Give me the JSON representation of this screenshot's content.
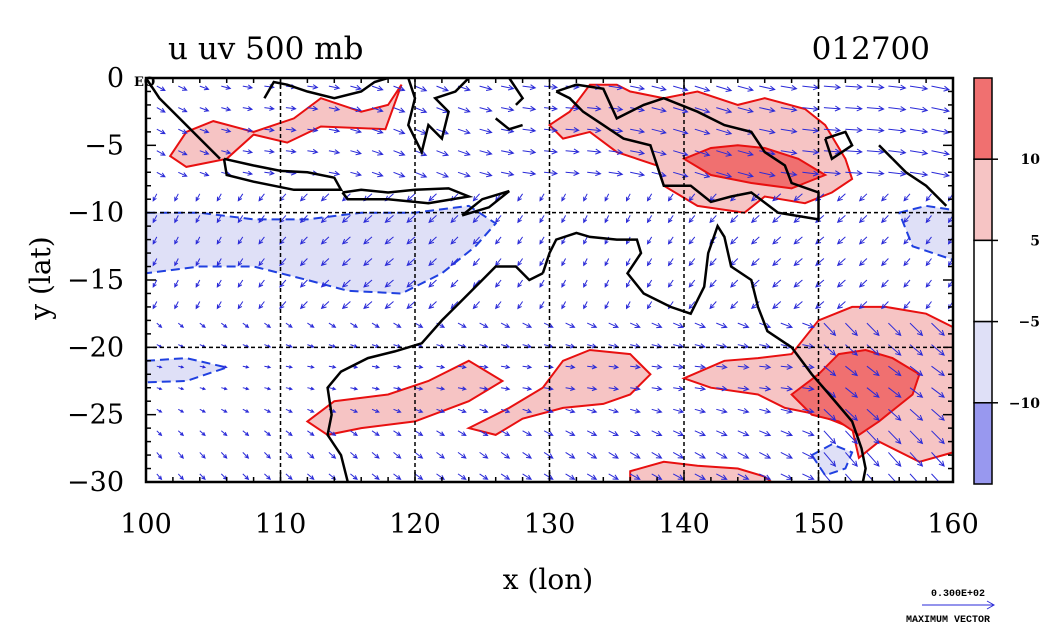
{
  "chart_data": {
    "type": "heatmap",
    "subtype": "contour-vector-map",
    "title": "u uv 500 mb",
    "date_label": "012700",
    "xlabel": "x (lon)",
    "ylabel": "y (lat)",
    "xlim": [
      100,
      160
    ],
    "ylim": [
      -30,
      0
    ],
    "x_ticks": [
      100,
      110,
      120,
      130,
      140,
      150,
      160
    ],
    "x_tick_labels": [
      "100",
      "110",
      "120",
      "130",
      "140",
      "150",
      "160"
    ],
    "y_ticks": [
      0,
      -5,
      -10,
      -15,
      -20,
      -25,
      -30
    ],
    "y_tick_labels": [
      "0",
      "−5",
      "−10",
      "−15",
      "−20",
      "−25",
      "−30"
    ],
    "eq_label": "EQ",
    "gridlines": {
      "lon": [
        110,
        120,
        130,
        140,
        150
      ],
      "lat": [
        -10,
        -20
      ]
    },
    "colorbar": {
      "bins": [
        {
          "from": 10,
          "to": 15,
          "color": "#f07070"
        },
        {
          "from": 5,
          "to": 10,
          "color": "#f6c4c4"
        },
        {
          "from": -5,
          "to": 5,
          "color": "#ffffff"
        },
        {
          "from": -10,
          "to": -5,
          "color": "#dfe0f7"
        },
        {
          "from": -15,
          "to": -10,
          "color": "#9898ef"
        }
      ],
      "tick_values": [
        10,
        5,
        -5,
        -10
      ],
      "tick_labels": [
        "10",
        "5",
        "−5",
        "−10"
      ]
    },
    "max_vector": {
      "value_label": "0.300E+02",
      "caption": "MAXIMUM VECTOR",
      "magnitude": 30
    },
    "regions": [
      {
        "level": "pos",
        "polygon": [
          [
            101.8,
            -5.8
          ],
          [
            103.0,
            -4.0
          ],
          [
            105.0,
            -3.2
          ],
          [
            108.0,
            -4.0
          ],
          [
            111.0,
            -3.0
          ],
          [
            113.0,
            -1.5
          ],
          [
            116.0,
            -2.5
          ],
          [
            118.0,
            -2.0
          ],
          [
            119.0,
            -0.5
          ],
          [
            117.8,
            -3.8
          ],
          [
            113.0,
            -3.6
          ],
          [
            110.5,
            -4.8
          ],
          [
            108.0,
            -4.2
          ],
          [
            106.0,
            -6.0
          ],
          [
            103.0,
            -6.6
          ]
        ]
      },
      {
        "level": "pos",
        "polygon": [
          [
            130.0,
            -3.5
          ],
          [
            131.5,
            -2.5
          ],
          [
            133.0,
            -0.5
          ],
          [
            135.0,
            -0.5
          ],
          [
            136.0,
            -1.0
          ],
          [
            138.5,
            -1.5
          ],
          [
            141.0,
            -1.0
          ],
          [
            144.0,
            -2.0
          ],
          [
            146.0,
            -1.5
          ],
          [
            149.0,
            -2.3
          ],
          [
            150.5,
            -3.5
          ],
          [
            152.0,
            -6.0
          ],
          [
            152.5,
            -7.5
          ],
          [
            151.0,
            -8.5
          ],
          [
            149.0,
            -9.3
          ],
          [
            146.0,
            -8.8
          ],
          [
            144.5,
            -10.0
          ],
          [
            141.0,
            -9.5
          ],
          [
            138.5,
            -8.0
          ],
          [
            138.0,
            -6.5
          ],
          [
            135.0,
            -5.5
          ],
          [
            133.0,
            -4.0
          ],
          [
            131.0,
            -4.5
          ]
        ]
      },
      {
        "level": "pos2",
        "polygon": [
          [
            140.0,
            -6.0
          ],
          [
            142.0,
            -5.2
          ],
          [
            144.0,
            -5.0
          ],
          [
            146.0,
            -5.2
          ],
          [
            148.5,
            -6.0
          ],
          [
            150.5,
            -7.2
          ],
          [
            148.0,
            -8.2
          ],
          [
            145.0,
            -7.8
          ],
          [
            142.0,
            -7.2
          ]
        ]
      },
      {
        "level": "pos",
        "polygon": [
          [
            112.0,
            -25.5
          ],
          [
            114.0,
            -24.0
          ],
          [
            118.0,
            -23.5
          ],
          [
            121.0,
            -22.5
          ],
          [
            124.0,
            -21.0
          ],
          [
            126.5,
            -22.5
          ],
          [
            124.0,
            -24.0
          ],
          [
            120.0,
            -25.5
          ],
          [
            116.0,
            -26.0
          ],
          [
            113.5,
            -26.5
          ]
        ]
      },
      {
        "level": "pos",
        "polygon": [
          [
            124.0,
            -26.0
          ],
          [
            127.0,
            -24.5
          ],
          [
            129.5,
            -23.0
          ],
          [
            131.0,
            -21.0
          ],
          [
            133.0,
            -20.2
          ],
          [
            136.0,
            -20.5
          ],
          [
            137.5,
            -22.0
          ],
          [
            136.0,
            -23.5
          ],
          [
            134.0,
            -24.2
          ],
          [
            131.0,
            -24.5
          ],
          [
            128.0,
            -25.3
          ],
          [
            126.0,
            -26.5
          ]
        ]
      },
      {
        "level": "pos",
        "polygon": [
          [
            140.0,
            -22.3
          ],
          [
            143.0,
            -21.0
          ],
          [
            145.5,
            -20.8
          ],
          [
            148.0,
            -20.5
          ],
          [
            150.0,
            -18.0
          ],
          [
            152.5,
            -17.0
          ],
          [
            155.0,
            -17.0
          ],
          [
            158.0,
            -17.5
          ],
          [
            160.0,
            -18.5
          ],
          [
            160.0,
            -27.8
          ],
          [
            157.5,
            -28.5
          ],
          [
            154.5,
            -27.0
          ],
          [
            153.0,
            -28.2
          ],
          [
            152.5,
            -26.0
          ],
          [
            150.0,
            -25.0
          ],
          [
            147.5,
            -24.5
          ],
          [
            145.5,
            -23.5
          ],
          [
            142.0,
            -23.0
          ]
        ]
      },
      {
        "level": "pos2",
        "polygon": [
          [
            148.0,
            -23.5
          ],
          [
            150.0,
            -22.0
          ],
          [
            151.5,
            -20.5
          ],
          [
            153.5,
            -20.2
          ],
          [
            155.5,
            -20.8
          ],
          [
            157.5,
            -22.0
          ],
          [
            157.0,
            -23.5
          ],
          [
            154.5,
            -25.5
          ],
          [
            153.0,
            -26.5
          ],
          [
            151.5,
            -25.5
          ],
          [
            149.5,
            -25.0
          ]
        ]
      },
      {
        "level": "pos",
        "polygon": [
          [
            136.0,
            -29.2
          ],
          [
            138.5,
            -28.5
          ],
          [
            141.0,
            -28.8
          ],
          [
            144.0,
            -29.0
          ],
          [
            146.0,
            -29.6
          ],
          [
            146.5,
            -30.0
          ],
          [
            136.0,
            -30.0
          ]
        ]
      },
      {
        "level": "neg",
        "polygon": [
          [
            100.0,
            -10.0
          ],
          [
            104.0,
            -10.0
          ],
          [
            108.0,
            -10.5
          ],
          [
            112.0,
            -10.5
          ],
          [
            116.0,
            -10.0
          ],
          [
            120.0,
            -10.0
          ],
          [
            124.0,
            -9.5
          ],
          [
            126.0,
            -10.8
          ],
          [
            124.5,
            -12.5
          ],
          [
            122.0,
            -14.5
          ],
          [
            119.0,
            -16.0
          ],
          [
            115.0,
            -15.8
          ],
          [
            112.0,
            -15.0
          ],
          [
            108.0,
            -14.0
          ],
          [
            104.0,
            -14.0
          ],
          [
            100.0,
            -14.5
          ]
        ]
      },
      {
        "level": "neg",
        "polygon": [
          [
            100.0,
            -21.0
          ],
          [
            103.0,
            -20.8
          ],
          [
            106.0,
            -21.5
          ],
          [
            103.0,
            -22.5
          ],
          [
            100.0,
            -22.6
          ]
        ]
      },
      {
        "level": "neg",
        "polygon": [
          [
            156.0,
            -10.0
          ],
          [
            158.0,
            -9.5
          ],
          [
            160.0,
            -9.8
          ],
          [
            160.0,
            -13.5
          ],
          [
            157.0,
            -12.5
          ]
        ]
      },
      {
        "level": "neg",
        "polygon": [
          [
            149.5,
            -28.0
          ],
          [
            151.0,
            -27.2
          ],
          [
            152.5,
            -27.8
          ],
          [
            152.0,
            -29.0
          ],
          [
            150.5,
            -29.5
          ]
        ]
      }
    ],
    "coastlines": [
      [
        [
          100.0,
          0.0
        ],
        [
          101.0,
          -1.5
        ],
        [
          102.5,
          -3.0
        ],
        [
          104.0,
          -4.5
        ],
        [
          105.5,
          -6.0
        ]
      ],
      [
        [
          105.8,
          -6.0
        ],
        [
          108.0,
          -6.5
        ],
        [
          110.0,
          -6.9
        ],
        [
          112.0,
          -7.0
        ],
        [
          114.0,
          -7.4
        ],
        [
          114.5,
          -8.3
        ],
        [
          111.0,
          -8.3
        ],
        [
          108.0,
          -7.7
        ],
        [
          106.0,
          -7.2
        ],
        [
          105.8,
          -6.0
        ]
      ],
      [
        [
          114.6,
          -8.5
        ],
        [
          116.0,
          -8.3
        ],
        [
          118.0,
          -8.5
        ],
        [
          120.0,
          -8.3
        ],
        [
          122.5,
          -8.2
        ],
        [
          124.0,
          -8.8
        ],
        [
          121.0,
          -9.3
        ],
        [
          118.0,
          -9.0
        ],
        [
          115.0,
          -9.0
        ],
        [
          114.6,
          -8.5
        ]
      ],
      [
        [
          123.5,
          -10.2
        ],
        [
          125.0,
          -9.0
        ],
        [
          127.0,
          -8.4
        ],
        [
          125.5,
          -9.6
        ],
        [
          123.5,
          -10.2
        ]
      ],
      [
        [
          108.8,
          -1.5
        ],
        [
          109.5,
          -0.3
        ],
        [
          110.5,
          -0.5
        ],
        [
          112.0,
          -1.0
        ],
        [
          114.0,
          -1.5
        ],
        [
          116.0,
          -1.0
        ],
        [
          117.0,
          -0.3
        ],
        [
          118.0,
          0.0
        ]
      ],
      [
        [
          119.5,
          0.0
        ],
        [
          120.0,
          -1.5
        ],
        [
          119.5,
          -3.5
        ],
        [
          120.5,
          -5.5
        ],
        [
          121.0,
          -3.5
        ],
        [
          122.0,
          -4.5
        ],
        [
          122.5,
          -2.5
        ],
        [
          121.5,
          -1.5
        ],
        [
          123.0,
          -1.0
        ],
        [
          124.0,
          0.0
        ]
      ],
      [
        [
          127.0,
          0.0
        ],
        [
          128.0,
          -1.5
        ],
        [
          127.5,
          -2.0
        ]
      ],
      [
        [
          126.0,
          -3.0
        ],
        [
          127.0,
          -3.8
        ],
        [
          128.0,
          -3.5
        ]
      ],
      [
        [
          130.5,
          -1.0
        ],
        [
          132.0,
          -0.5
        ],
        [
          134.0,
          -0.8
        ],
        [
          135.0,
          -3.0
        ],
        [
          137.0,
          -2.0
        ],
        [
          138.5,
          -1.5
        ],
        [
          141.0,
          -2.5
        ],
        [
          143.0,
          -3.5
        ],
        [
          145.0,
          -4.0
        ],
        [
          146.0,
          -5.5
        ],
        [
          147.5,
          -6.5
        ],
        [
          148.0,
          -7.8
        ],
        [
          150.0,
          -8.5
        ],
        [
          150.0,
          -10.5
        ],
        [
          147.0,
          -10.0
        ],
        [
          145.0,
          -8.5
        ],
        [
          143.5,
          -8.8
        ],
        [
          142.0,
          -9.2
        ],
        [
          140.5,
          -8.0
        ],
        [
          138.5,
          -8.0
        ],
        [
          138.0,
          -6.5
        ],
        [
          137.5,
          -5.0
        ],
        [
          135.5,
          -4.5
        ],
        [
          134.0,
          -3.5
        ],
        [
          132.5,
          -2.5
        ],
        [
          131.5,
          -1.5
        ],
        [
          130.5,
          -1.0
        ]
      ],
      [
        [
          150.5,
          -4.5
        ],
        [
          152.0,
          -4.0
        ],
        [
          152.5,
          -5.0
        ],
        [
          151.0,
          -6.0
        ],
        [
          150.5,
          -4.5
        ]
      ],
      [
        [
          155.5,
          -6.0
        ],
        [
          156.5,
          -7.0
        ],
        [
          158.0,
          -8.0
        ],
        [
          159.5,
          -9.5
        ]
      ],
      [
        [
          154.5,
          -5.0
        ],
        [
          155.5,
          -6.0
        ]
      ],
      [
        [
          129.5,
          -14.5
        ],
        [
          130.0,
          -13.0
        ],
        [
          130.5,
          -12.0
        ],
        [
          132.0,
          -11.5
        ],
        [
          133.0,
          -11.8
        ],
        [
          135.0,
          -12.0
        ],
        [
          136.5,
          -12.0
        ],
        [
          136.8,
          -13.0
        ],
        [
          135.8,
          -14.5
        ],
        [
          137.0,
          -16.0
        ],
        [
          139.0,
          -17.0
        ],
        [
          140.5,
          -17.5
        ],
        [
          141.5,
          -15.5
        ],
        [
          141.8,
          -13.0
        ],
        [
          142.5,
          -11.0
        ],
        [
          143.0,
          -11.8
        ],
        [
          143.5,
          -14.0
        ],
        [
          145.0,
          -15.0
        ],
        [
          145.5,
          -17.0
        ],
        [
          146.2,
          -18.8
        ],
        [
          148.0,
          -20.0
        ],
        [
          149.5,
          -22.0
        ],
        [
          150.8,
          -23.5
        ],
        [
          152.5,
          -25.5
        ],
        [
          153.2,
          -27.5
        ],
        [
          153.5,
          -29.0
        ],
        [
          153.3,
          -30.0
        ]
      ],
      [
        [
          129.5,
          -14.5
        ],
        [
          128.5,
          -15.0
        ],
        [
          127.5,
          -14.0
        ],
        [
          126.0,
          -14.0
        ],
        [
          125.0,
          -15.0
        ],
        [
          123.5,
          -16.5
        ],
        [
          122.0,
          -18.0
        ],
        [
          120.5,
          -19.7
        ],
        [
          118.5,
          -20.3
        ],
        [
          116.5,
          -20.8
        ],
        [
          114.5,
          -21.8
        ],
        [
          113.5,
          -23.0
        ],
        [
          113.8,
          -25.0
        ],
        [
          113.5,
          -26.5
        ],
        [
          114.5,
          -28.0
        ],
        [
          115.0,
          -30.0
        ]
      ]
    ]
  }
}
